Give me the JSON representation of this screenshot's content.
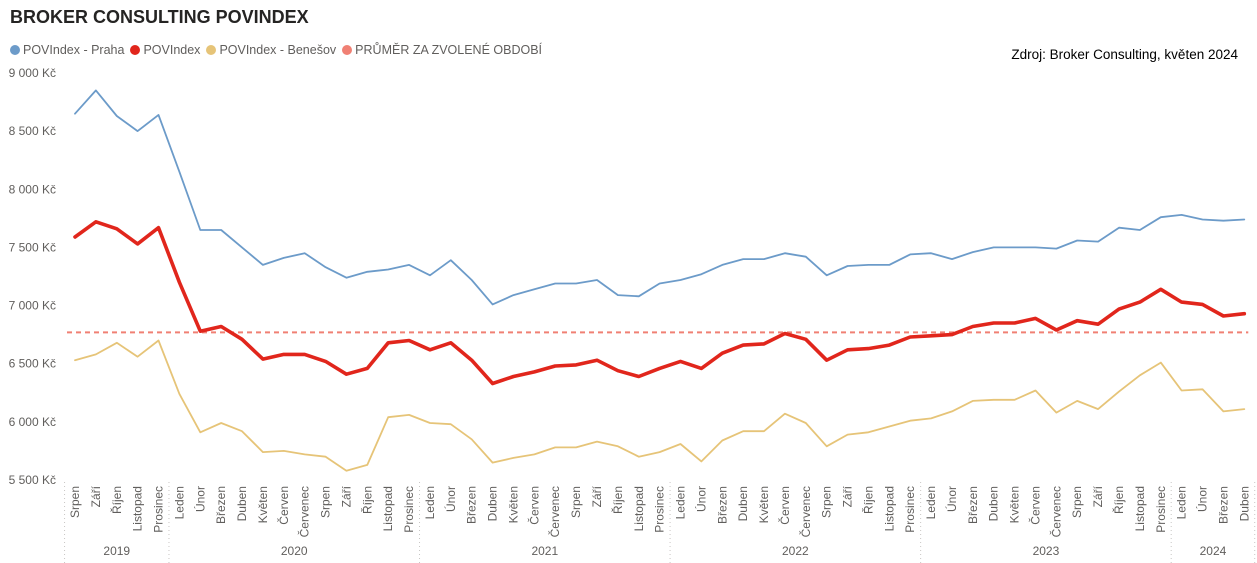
{
  "title": "BROKER CONSULTING POVINDEX",
  "source": "Zdroj: Broker Consulting, květen 2024",
  "legend": [
    {
      "label": "POVIndex - Praha",
      "color": "#6c9bc9"
    },
    {
      "label": "POVIndex",
      "color": "#e1261c"
    },
    {
      "label": "POVIndex - Benešov",
      "color": "#e6c478"
    },
    {
      "label": "PRŮMĚR ZA ZVOLENÉ OBDOBÍ",
      "color": "#f08074"
    }
  ],
  "chart_data": {
    "type": "line",
    "title": "BROKER CONSULTING POVINDEX",
    "y_tick_labels": [
      "9 000 Kč",
      "8 500 Kč",
      "8 000 Kč",
      "7 500 Kč",
      "7 000 Kč",
      "6 500 Kč",
      "6 000 Kč",
      "5 500 Kč"
    ],
    "y_ticks": [
      9000,
      8500,
      8000,
      7500,
      7000,
      6500,
      6000,
      5500
    ],
    "ylim": [
      5500,
      9000
    ],
    "grid": false,
    "legend_position": "top-left",
    "categories": [
      "Srpen",
      "Září",
      "Říjen",
      "Listopad",
      "Prosinec",
      "Leden",
      "Únor",
      "Březen",
      "Duben",
      "Květen",
      "Červen",
      "Červenec",
      "Srpen",
      "Září",
      "Říjen",
      "Listopad",
      "Prosinec",
      "Leden",
      "Únor",
      "Březen",
      "Duben",
      "Květen",
      "Červen",
      "Červenec",
      "Srpen",
      "Září",
      "Říjen",
      "Listopad",
      "Prosinec",
      "Leden",
      "Únor",
      "Březen",
      "Duben",
      "Květen",
      "Červen",
      "Červenec",
      "Srpen",
      "Září",
      "Říjen",
      "Listopad",
      "Prosinec",
      "Leden",
      "Únor",
      "Březen",
      "Duben",
      "Květen",
      "Červen",
      "Červenec",
      "Srpen",
      "Září",
      "Říjen",
      "Listopad",
      "Prosinec",
      "Leden",
      "Únor",
      "Březen",
      "Duben"
    ],
    "years": [
      {
        "label": "2019",
        "count": 5
      },
      {
        "label": "2020",
        "count": 12
      },
      {
        "label": "2021",
        "count": 12
      },
      {
        "label": "2022",
        "count": 12
      },
      {
        "label": "2023",
        "count": 12
      },
      {
        "label": "2024",
        "count": 4
      }
    ],
    "series": [
      {
        "name": "POVIndex - Praha",
        "color": "#6c9bc9",
        "width": 1.8,
        "values": [
          8650,
          8850,
          8630,
          8500,
          8640,
          8150,
          7650,
          7650,
          7500,
          7350,
          7410,
          7450,
          7330,
          7240,
          7290,
          7310,
          7350,
          7260,
          7390,
          7220,
          7010,
          7090,
          7140,
          7190,
          7190,
          7220,
          7090,
          7080,
          7190,
          7220,
          7270,
          7350,
          7400,
          7400,
          7450,
          7420,
          7260,
          7340,
          7350,
          7350,
          7440,
          7450,
          7400,
          7460,
          7500,
          7500,
          7500,
          7490,
          7560,
          7550,
          7670,
          7650,
          7760,
          7780,
          7740,
          7730,
          7740
        ]
      },
      {
        "name": "POVIndex",
        "color": "#e1261c",
        "width": 3.6,
        "values": [
          7590,
          7720,
          7660,
          7530,
          7670,
          7200,
          6780,
          6820,
          6710,
          6540,
          6580,
          6580,
          6520,
          6410,
          6460,
          6680,
          6700,
          6620,
          6680,
          6530,
          6330,
          6390,
          6430,
          6480,
          6490,
          6530,
          6440,
          6390,
          6460,
          6520,
          6460,
          6590,
          6660,
          6670,
          6760,
          6710,
          6530,
          6620,
          6630,
          6660,
          6730,
          6740,
          6750,
          6820,
          6850,
          6850,
          6890,
          6790,
          6870,
          6840,
          6970,
          7030,
          7140,
          7030,
          7010,
          6910,
          6930
        ]
      },
      {
        "name": "POVIndex - Benešov",
        "color": "#e6c478",
        "width": 1.8,
        "values": [
          6530,
          6580,
          6680,
          6560,
          6700,
          6240,
          5910,
          5990,
          5920,
          5740,
          5750,
          5720,
          5700,
          5580,
          5630,
          6040,
          6060,
          5990,
          5980,
          5850,
          5650,
          5690,
          5720,
          5780,
          5780,
          5830,
          5790,
          5700,
          5740,
          5810,
          5660,
          5840,
          5920,
          5920,
          6070,
          5990,
          5790,
          5890,
          5910,
          5960,
          6010,
          6030,
          6090,
          6180,
          6190,
          6190,
          6270,
          6080,
          6180,
          6110,
          6260,
          6400,
          6510,
          6270,
          6280,
          6090,
          6110
        ]
      }
    ],
    "average": {
      "name": "PRŮMĚR ZA ZVOLENÉ OBDOBÍ",
      "value": 6770,
      "color": "#f08074"
    }
  }
}
